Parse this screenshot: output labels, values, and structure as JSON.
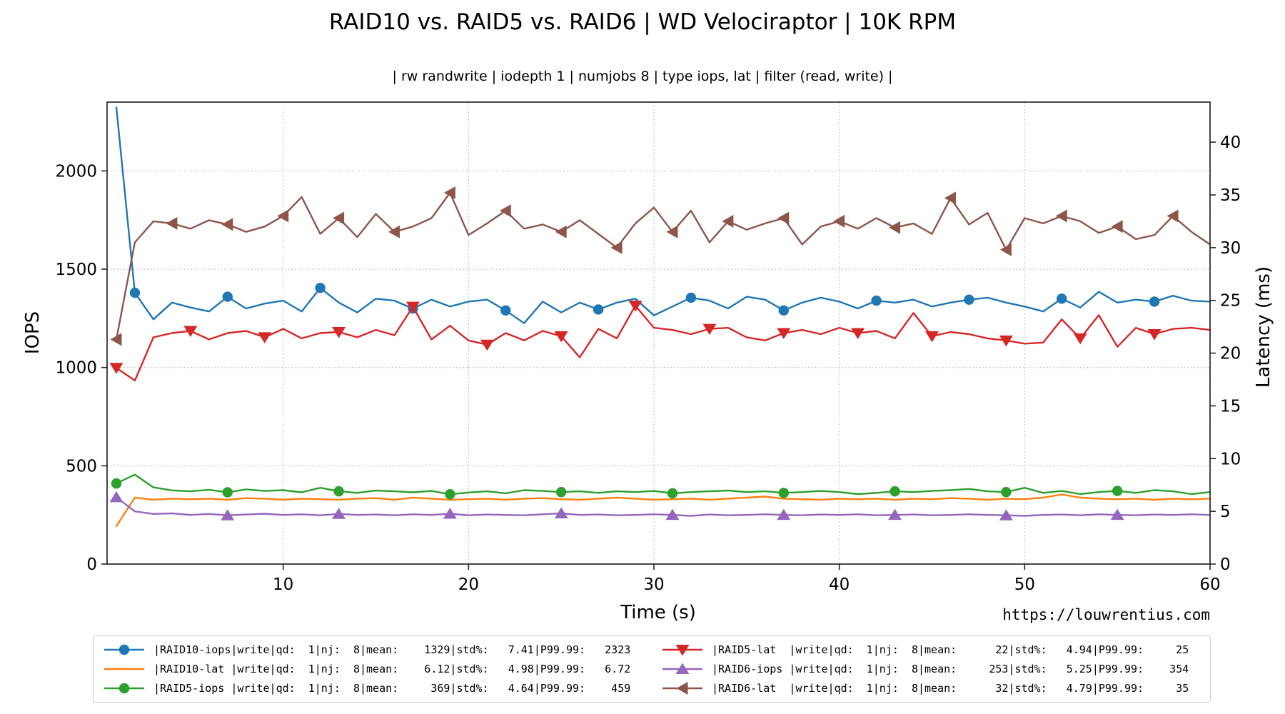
{
  "chart_data": {
    "type": "line",
    "title": "RAID10 vs. RAID5 vs. RAID6 | WD Velociraptor | 10K RPM",
    "subtitle": "| rw randwrite | iodepth 1 | numjobs 8 | type iops, lat | filter (read, write) |",
    "xlabel": "Time (s)",
    "ylabel_left": "IOPS",
    "ylabel_right": "Latency (ms)",
    "watermark": "https://louwrentius.com",
    "xlim": [
      0.5,
      60
    ],
    "ylim_left": [
      0,
      2350
    ],
    "ylim_right": [
      0,
      43.8
    ],
    "xticks": [
      10,
      20,
      30,
      40,
      50,
      60
    ],
    "yticks_left": [
      0,
      500,
      1000,
      1500,
      2000
    ],
    "yticks_right": [
      0,
      5,
      10,
      15,
      20,
      25,
      30,
      35,
      40
    ],
    "x": [
      1,
      2,
      3,
      4,
      5,
      6,
      7,
      8,
      9,
      10,
      11,
      12,
      13,
      14,
      15,
      16,
      17,
      18,
      19,
      20,
      21,
      22,
      23,
      24,
      25,
      26,
      27,
      28,
      29,
      30,
      31,
      32,
      33,
      34,
      35,
      36,
      37,
      38,
      39,
      40,
      41,
      42,
      43,
      44,
      45,
      46,
      47,
      48,
      49,
      50,
      51,
      52,
      53,
      54,
      55,
      56,
      57,
      58,
      59,
      60
    ],
    "series": [
      {
        "name": "RAID10-iops",
        "axis": "left",
        "color": "#1f77b4",
        "marker": "circle",
        "markevery": 5,
        "markstart": 1,
        "mean": 1329,
        "stdpct": 7.41,
        "p9999": 2323,
        "values": [
          2323,
          1380,
          1245,
          1330,
          1305,
          1285,
          1360,
          1300,
          1325,
          1340,
          1285,
          1405,
          1330,
          1280,
          1350,
          1340,
          1300,
          1345,
          1310,
          1335,
          1345,
          1290,
          1225,
          1335,
          1280,
          1330,
          1295,
          1330,
          1350,
          1265,
          1310,
          1355,
          1340,
          1300,
          1360,
          1345,
          1290,
          1330,
          1355,
          1335,
          1300,
          1340,
          1330,
          1345,
          1310,
          1330,
          1345,
          1355,
          1330,
          1310,
          1285,
          1350,
          1305,
          1385,
          1330,
          1345,
          1335,
          1365,
          1340,
          1335
        ]
      },
      {
        "name": "RAID10-lat",
        "axis": "right",
        "color": "#ff7f0e",
        "marker": "none",
        "markevery": 0,
        "markstart": 0,
        "mean": 6.12,
        "stdpct": 4.98,
        "p9999": 6.72,
        "values": [
          3.6,
          6.3,
          6.1,
          6.2,
          6.15,
          6.2,
          6.1,
          6.25,
          6.2,
          6.1,
          6.2,
          6.15,
          6.1,
          6.2,
          6.25,
          6.1,
          6.3,
          6.2,
          6.1,
          6.15,
          6.2,
          6.1,
          6.2,
          6.25,
          6.15,
          6.1,
          6.2,
          6.3,
          6.2,
          6.1,
          6.15,
          6.2,
          6.1,
          6.2,
          6.3,
          6.4,
          6.2,
          6.15,
          6.1,
          6.2,
          6.15,
          6.2,
          6.1,
          6.2,
          6.15,
          6.25,
          6.2,
          6.1,
          6.2,
          6.15,
          6.3,
          6.6,
          6.3,
          6.2,
          6.15,
          6.2,
          6.1,
          6.2,
          6.15,
          6.2
        ]
      },
      {
        "name": "RAID5-iops",
        "axis": "left",
        "color": "#2ca02c",
        "marker": "circle",
        "markevery": 6,
        "markstart": 0,
        "mean": 369,
        "stdpct": 4.64,
        "p9999": 459,
        "values": [
          410,
          455,
          390,
          375,
          370,
          378,
          365,
          380,
          372,
          376,
          365,
          388,
          370,
          362,
          374,
          370,
          365,
          372,
          355,
          364,
          370,
          360,
          376,
          372,
          366,
          370,
          362,
          370,
          366,
          372,
          360,
          366,
          370,
          374,
          366,
          370,
          362,
          366,
          372,
          366,
          356,
          362,
          370,
          366,
          372,
          376,
          382,
          370,
          366,
          388,
          362,
          372,
          356,
          366,
          372,
          362,
          376,
          370,
          356,
          366
        ]
      },
      {
        "name": "RAID5-lat",
        "axis": "right",
        "color": "#d62728",
        "marker": "triangle-down",
        "markevery": 4,
        "markstart": 0,
        "mean": 22,
        "stdpct": 4.94,
        "p9999": 25,
        "values": [
          18.6,
          17.4,
          21.5,
          21.9,
          22.1,
          21.3,
          21.9,
          22.1,
          21.5,
          22.3,
          21.4,
          21.9,
          22.0,
          21.5,
          22.2,
          21.7,
          24.4,
          21.3,
          22.6,
          21.2,
          20.8,
          21.9,
          21.2,
          22.1,
          21.6,
          19.6,
          22.3,
          21.4,
          24.5,
          22.4,
          22.2,
          21.8,
          22.3,
          22.4,
          21.5,
          21.2,
          21.9,
          22.2,
          21.8,
          22.4,
          21.9,
          22.1,
          21.4,
          23.8,
          21.6,
          22.0,
          21.8,
          21.4,
          21.2,
          20.9,
          21.0,
          23.2,
          21.4,
          23.6,
          20.6,
          22.4,
          21.8,
          22.3,
          22.4,
          22.2
        ]
      },
      {
        "name": "RAID6-iops",
        "axis": "left",
        "color": "#9467bd",
        "marker": "triangle-up",
        "markevery": 6,
        "markstart": 0,
        "mean": 253,
        "stdpct": 5.25,
        "p9999": 354,
        "values": [
          340,
          268,
          255,
          258,
          250,
          255,
          248,
          252,
          256,
          250,
          253,
          248,
          255,
          250,
          252,
          248,
          253,
          250,
          256,
          248,
          252,
          250,
          248,
          253,
          258,
          250,
          252,
          248,
          250,
          253,
          250,
          245,
          252,
          248,
          250,
          253,
          250,
          248,
          252,
          250,
          253,
          248,
          250,
          252,
          248,
          250,
          253,
          250,
          248,
          245,
          250,
          252,
          248,
          253,
          250,
          248,
          252,
          250,
          253,
          250
        ]
      },
      {
        "name": "RAID6-lat",
        "axis": "right",
        "color": "#8c564b",
        "marker": "triangle-left",
        "markevery": 3,
        "markstart": 0,
        "mean": 32,
        "stdpct": 4.79,
        "p9999": 35,
        "values": [
          21.3,
          30.5,
          32.5,
          32.3,
          31.8,
          32.6,
          32.2,
          31.5,
          32.0,
          33.0,
          34.8,
          31.3,
          32.8,
          31.0,
          33.2,
          31.5,
          32.0,
          32.8,
          35.2,
          31.2,
          32.3,
          33.5,
          31.8,
          32.2,
          31.5,
          32.6,
          31.3,
          30.0,
          32.3,
          33.8,
          31.5,
          33.5,
          30.5,
          32.5,
          31.7,
          32.3,
          32.8,
          30.3,
          32.0,
          32.5,
          31.8,
          32.8,
          31.9,
          32.3,
          31.3,
          34.7,
          32.2,
          33.3,
          29.8,
          32.8,
          32.3,
          33.0,
          32.5,
          31.4,
          32.0,
          30.8,
          31.2,
          33.0,
          31.5,
          30.3
        ]
      }
    ]
  },
  "legend": {
    "entries": [
      {
        "text": "|RAID10-iops|write|qd:  1|nj:  8|mean:    1329|std%:   7.41|P99.99:   2323"
      },
      {
        "text": "|RAID10-lat |write|qd:  1|nj:  8|mean:    6.12|std%:   4.98|P99.99:   6.72"
      },
      {
        "text": "|RAID5-iops |write|qd:  1|nj:  8|mean:     369|std%:   4.64|P99.99:    459"
      },
      {
        "text": "|RAID5-lat  |write|qd:  1|nj:  8|mean:      22|std%:   4.94|P99.99:     25"
      },
      {
        "text": "|RAID6-iops |write|qd:  1|nj:  8|mean:     253|std%:   5.25|P99.99:    354"
      },
      {
        "text": "|RAID6-lat  |write|qd:  1|nj:  8|mean:      32|std%:   4.79|P99.99:     35"
      }
    ]
  }
}
